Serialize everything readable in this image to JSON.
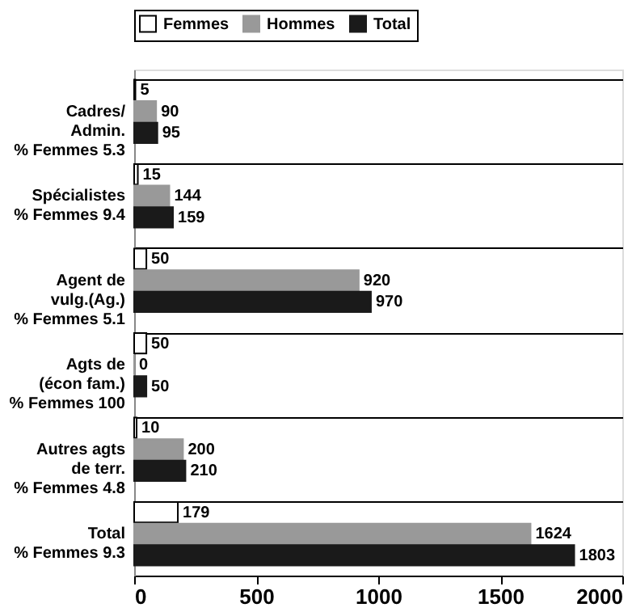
{
  "chart_data": {
    "type": "bar",
    "orientation": "horizontal",
    "categories": [
      "Cadres/\nAdmin.\n% Femmes 5.3",
      "Spécialistes\n% Femmes 9.4",
      "Agent de\nvulg.(Ag.)\n% Femmes 5.1",
      "Agts de\n(écon fam.)\n% Femmes 100",
      "Autres agts\nde terr.\n% Femmes 4.8",
      "Total\n% Femmes 9.3"
    ],
    "series": [
      {
        "name": "Femmes",
        "color": "#ffffff",
        "values": [
          5,
          15,
          50,
          50,
          10,
          179
        ]
      },
      {
        "name": "Hommes",
        "color": "#999999",
        "values": [
          90,
          144,
          920,
          0,
          200,
          1624
        ]
      },
      {
        "name": "Total",
        "color": "#1a1a1a",
        "values": [
          95,
          159,
          970,
          50,
          210,
          1803
        ]
      }
    ],
    "xlim": [
      0,
      2000
    ],
    "xticks": [
      0,
      500,
      1000,
      1500,
      2000
    ],
    "data_labels": true,
    "legend": "top",
    "grid": "y"
  }
}
